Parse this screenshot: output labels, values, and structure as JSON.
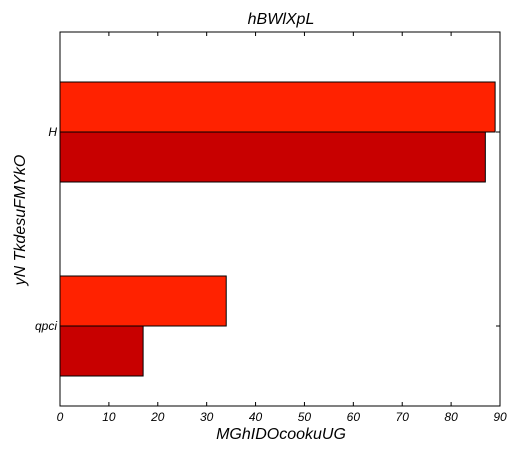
{
  "chart_data": {
    "type": "bar",
    "orientation": "horizontal",
    "title": "hBWlXpL",
    "xlabel": "MGhIDOcookuUG",
    "ylabel": "yN TkdesuFMYkO",
    "categories": [
      "H",
      "qpci"
    ],
    "xlim": [
      0,
      90
    ],
    "xticks": [
      0,
      10,
      20,
      30,
      40,
      50,
      60,
      70,
      80,
      90
    ],
    "grid": false,
    "legend": "none",
    "series": [
      {
        "values": [
          89,
          34
        ],
        "color": "#ff2200"
      },
      {
        "values": [
          87,
          17
        ],
        "color": "#c80000"
      }
    ]
  }
}
